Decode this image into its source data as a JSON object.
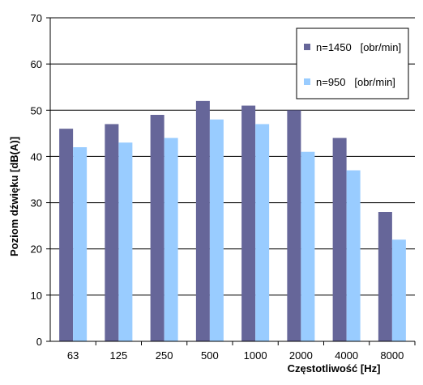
{
  "chart_data": {
    "type": "bar",
    "categories": [
      "63",
      "125",
      "250",
      "500",
      "1000",
      "2000",
      "4000",
      "8000"
    ],
    "series": [
      {
        "name": "n=1450   [obr/min]",
        "values": [
          46,
          47,
          49,
          52,
          51,
          50,
          44,
          28
        ],
        "color": "#666699"
      },
      {
        "name": "n=950   [obr/min]",
        "values": [
          42,
          43,
          44,
          48,
          47,
          41,
          37,
          22
        ],
        "color": "#99ccff"
      }
    ],
    "xlabel": "Częstotliwość  [Hz]",
    "ylabel": "Poziom dźwięku [dB(A)]",
    "ylim": [
      0,
      70
    ],
    "yticks": [
      0,
      10,
      20,
      30,
      40,
      50,
      60,
      70
    ],
    "grid": true,
    "legend_position": "top-right"
  }
}
